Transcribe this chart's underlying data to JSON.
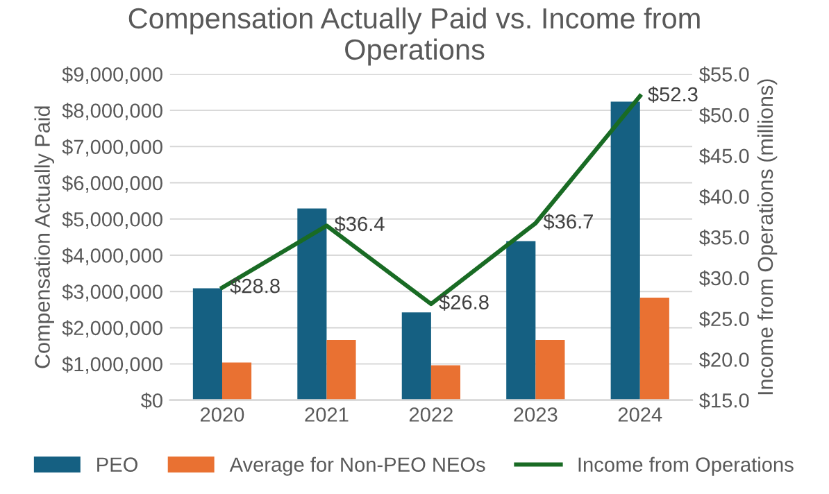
{
  "chart_data": {
    "type": "bar",
    "title": "Compensation Actually Paid vs. Income from\nOperations",
    "ylabel": "Compensation Actually Paid",
    "y2label": "Income from Operations (millions)",
    "categories": [
      "2020",
      "2021",
      "2022",
      "2023",
      "2024"
    ],
    "series": [
      {
        "name": "PEO",
        "color": "#156082",
        "values": [
          3090000,
          5290000,
          2420000,
          4390000,
          8240000
        ]
      },
      {
        "name": "Average for Non-PEO NEOs",
        "color": "#e97132",
        "values": [
          1040000,
          1660000,
          960000,
          1660000,
          2830000
        ]
      },
      {
        "name": "Income from Operations",
        "type": "line",
        "axis": "y2",
        "color": "#196b24",
        "values": [
          28.8,
          36.4,
          26.8,
          36.7,
          52.3
        ],
        "value_labels": [
          "$28.8",
          "$36.4",
          "$26.8",
          "$36.7",
          "$52.3"
        ],
        "marker": "none"
      }
    ],
    "ylim": [
      0,
      9000000
    ],
    "yticks": [
      {
        "value": 0,
        "label": "$0"
      },
      {
        "value": 1000000,
        "label": "$1,000,000"
      },
      {
        "value": 2000000,
        "label": "$2,000,000"
      },
      {
        "value": 3000000,
        "label": "$3,000,000"
      },
      {
        "value": 4000000,
        "label": "$4,000,000"
      },
      {
        "value": 5000000,
        "label": "$5,000,000"
      },
      {
        "value": 6000000,
        "label": "$6,000,000"
      },
      {
        "value": 7000000,
        "label": "$7,000,000"
      },
      {
        "value": 8000000,
        "label": "$8,000,000"
      },
      {
        "value": 9000000,
        "label": "$9,000,000"
      }
    ],
    "y2lim": [
      15,
      55
    ],
    "y2ticks": [
      {
        "value": 15,
        "label": "$15.0"
      },
      {
        "value": 20,
        "label": "$20.0"
      },
      {
        "value": 25,
        "label": "$25.0"
      },
      {
        "value": 30,
        "label": "$30.0"
      },
      {
        "value": 35,
        "label": "$35.0"
      },
      {
        "value": 40,
        "label": "$40.0"
      },
      {
        "value": 45,
        "label": "$45.0"
      },
      {
        "value": 50,
        "label": "$50.0"
      },
      {
        "value": 55,
        "label": "$55.0"
      }
    ],
    "grid": "y",
    "legend": "bottom"
  }
}
